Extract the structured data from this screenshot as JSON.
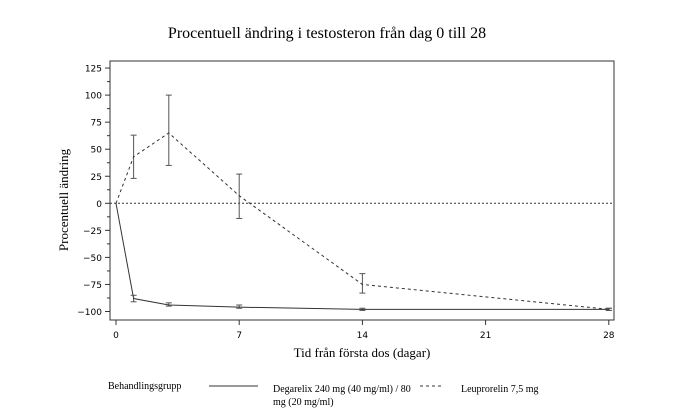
{
  "chart_data": {
    "type": "line",
    "title": "Procentuell ändring i testosteron från dag 0 till 28",
    "xlabel": "Tid från första dos (dagar)",
    "ylabel": "Procentuell ändring",
    "xlim": [
      -1.8,
      28.4
    ],
    "ylim": [
      -108,
      132
    ],
    "xticks": [
      0,
      7,
      14,
      21,
      28
    ],
    "yticks": [
      125,
      100,
      75,
      50,
      25,
      0,
      -25,
      -50,
      -75,
      -100
    ],
    "reference_line": 0,
    "legend_title": "Behandlingsgrupp",
    "legend_position": "bottom",
    "series": [
      {
        "name": "Degarelix 240 mg (40 mg/ml) / 80 mg (20 mg/ml)",
        "name_line1": "Degarelix 240 mg (40 mg/ml) / 80",
        "name_line2": "mg (20 mg/ml)",
        "style": "solid",
        "x": [
          0,
          1,
          3,
          7,
          14,
          28
        ],
        "y": [
          0,
          -88,
          -94,
          -96,
          -98,
          -98
        ],
        "err_low": [
          null,
          -91,
          -95,
          -97,
          -99,
          -99
        ],
        "err_high": [
          null,
          -85,
          -92,
          -94,
          -97,
          -97
        ]
      },
      {
        "name": "Leuprorelin 7,5 mg",
        "style": "dashed",
        "x": [
          0,
          1,
          3,
          7,
          14,
          28
        ],
        "y": [
          0,
          43,
          65,
          7,
          -75,
          -98
        ],
        "err_low": [
          null,
          23,
          35,
          -14,
          -83,
          -99
        ],
        "err_high": [
          null,
          63,
          100,
          27,
          -65,
          -97
        ]
      }
    ]
  }
}
